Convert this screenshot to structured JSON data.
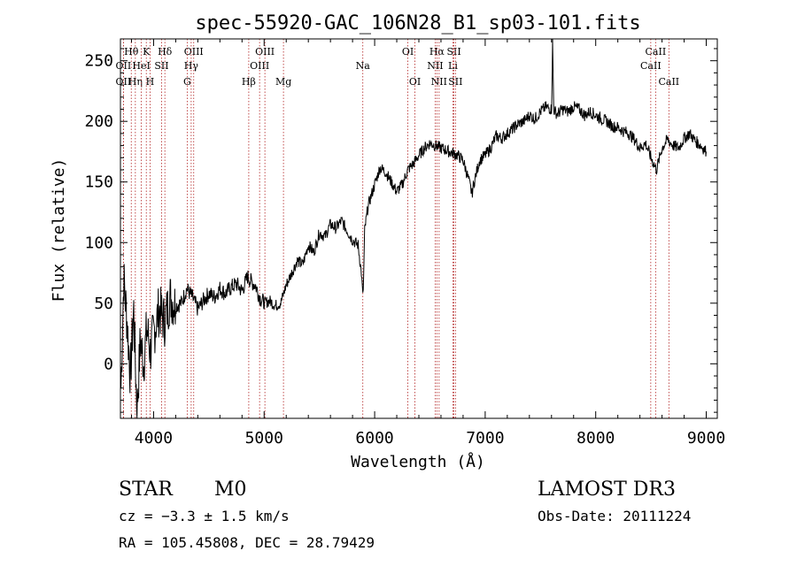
{
  "chart_data": {
    "type": "line",
    "title": "spec-55920-GAC_106N28_B1_sp03-101.fits",
    "xlabel": "Wavelength (Å)",
    "ylabel": "Flux (relative)",
    "xlim": [
      3700,
      9100
    ],
    "ylim": [
      -45,
      268
    ],
    "xticks": [
      4000,
      5000,
      6000,
      7000,
      8000,
      9000
    ],
    "yticks": [
      0,
      50,
      100,
      150,
      200,
      250
    ],
    "grid": false,
    "series": [
      {
        "name": "spectrum",
        "color": "#000000",
        "x": [
          3705,
          3730,
          3760,
          3790,
          3820,
          3850,
          3880,
          3910,
          3940,
          3970,
          4000,
          4050,
          4100,
          4150,
          4200,
          4250,
          4300,
          4350,
          4400,
          4450,
          4500,
          4550,
          4600,
          4650,
          4700,
          4750,
          4800,
          4850,
          4880,
          4920,
          4960,
          5000,
          5050,
          5100,
          5150,
          5200,
          5250,
          5300,
          5350,
          5400,
          5450,
          5500,
          5550,
          5600,
          5650,
          5700,
          5750,
          5800,
          5850,
          5880,
          5893,
          5900,
          5910,
          5940,
          6000,
          6050,
          6100,
          6150,
          6200,
          6250,
          6300,
          6350,
          6400,
          6450,
          6500,
          6550,
          6600,
          6650,
          6700,
          6750,
          6800,
          6850,
          6880,
          6900,
          6950,
          7000,
          7050,
          7100,
          7150,
          7200,
          7250,
          7300,
          7350,
          7400,
          7450,
          7500,
          7550,
          7600,
          7610,
          7620,
          7650,
          7700,
          7750,
          7800,
          7850,
          7900,
          7950,
          8000,
          8050,
          8100,
          8150,
          8200,
          8250,
          8300,
          8350,
          8400,
          8450,
          8500,
          8550,
          8600,
          8650,
          8700,
          8750,
          8800,
          8850,
          8900,
          8950,
          9000
        ],
        "values": [
          -20,
          70,
          35,
          -10,
          45,
          -40,
          20,
          0,
          30,
          10,
          25,
          45,
          35,
          55,
          48,
          50,
          62,
          55,
          45,
          52,
          58,
          55,
          62,
          58,
          63,
          66,
          60,
          72,
          68,
          65,
          55,
          50,
          52,
          48,
          50,
          65,
          75,
          85,
          82,
          98,
          92,
          108,
          105,
          115,
          112,
          118,
          110,
          102,
          98,
          75,
          55,
          70,
          110,
          130,
          148,
          162,
          158,
          150,
          142,
          148,
          160,
          165,
          172,
          178,
          182,
          180,
          178,
          176,
          174,
          172,
          168,
          152,
          140,
          150,
          168,
          172,
          178,
          188,
          186,
          190,
          194,
          198,
          200,
          205,
          202,
          208,
          212,
          210,
          265,
          210,
          206,
          210,
          208,
          212,
          210,
          205,
          208,
          205,
          202,
          200,
          196,
          195,
          192,
          190,
          185,
          178,
          182,
          170,
          160,
          178,
          185,
          180,
          178,
          186,
          190,
          184,
          180,
          175
        ]
      }
    ],
    "lines": [
      {
        "label": "Hθ",
        "x": 3798,
        "row": 1
      },
      {
        "label": "OII",
        "x": 3727,
        "row": 2
      },
      {
        "label": "OII",
        "x": 3727,
        "row": 3
      },
      {
        "label": "Hη",
        "x": 3835,
        "row": 3
      },
      {
        "label": "HeI",
        "x": 3889,
        "row": 2
      },
      {
        "label": "K",
        "x": 3934,
        "row": 1
      },
      {
        "label": "SII",
        "x": 4072,
        "row": 2
      },
      {
        "label": "H",
        "x": 3968,
        "row": 3
      },
      {
        "label": "Hδ",
        "x": 4102,
        "row": 1
      },
      {
        "label": "OIII",
        "x": 4363,
        "row": 1
      },
      {
        "label": "Hγ",
        "x": 4340,
        "row": 2
      },
      {
        "label": "G",
        "x": 4304,
        "row": 3
      },
      {
        "label": "OIII",
        "x": 5007,
        "row": 1
      },
      {
        "label": "OIII",
        "x": 4959,
        "row": 2
      },
      {
        "label": "Hβ",
        "x": 4861,
        "row": 3
      },
      {
        "label": "Mg",
        "x": 5175,
        "row": 3
      },
      {
        "label": "Na",
        "x": 5893,
        "row": 2
      },
      {
        "label": "OI",
        "x": 6300,
        "row": 1
      },
      {
        "label": "OI",
        "x": 6364,
        "row": 3
      },
      {
        "label": "Hα",
        "x": 6563,
        "row": 1
      },
      {
        "label": "SII",
        "x": 6717,
        "row": 1
      },
      {
        "label": "NII",
        "x": 6548,
        "row": 2
      },
      {
        "label": "Li",
        "x": 6708,
        "row": 2
      },
      {
        "label": "NII",
        "x": 6583,
        "row": 3
      },
      {
        "label": "SII",
        "x": 6731,
        "row": 3
      },
      {
        "label": "CaII",
        "x": 8542,
        "row": 1
      },
      {
        "label": "CaII",
        "x": 8498,
        "row": 2
      },
      {
        "label": "CaII",
        "x": 8662,
        "row": 3
      }
    ],
    "line_color": "#b22222"
  },
  "info": {
    "class": "STAR",
    "subclass": "M0",
    "survey": "LAMOST DR3",
    "redshift": "cz = −3.3 ± 1.5 km/s",
    "obs_date": "Obs-Date: 20111224",
    "coords": "RA = 105.45808, DEC =  28.79429"
  }
}
